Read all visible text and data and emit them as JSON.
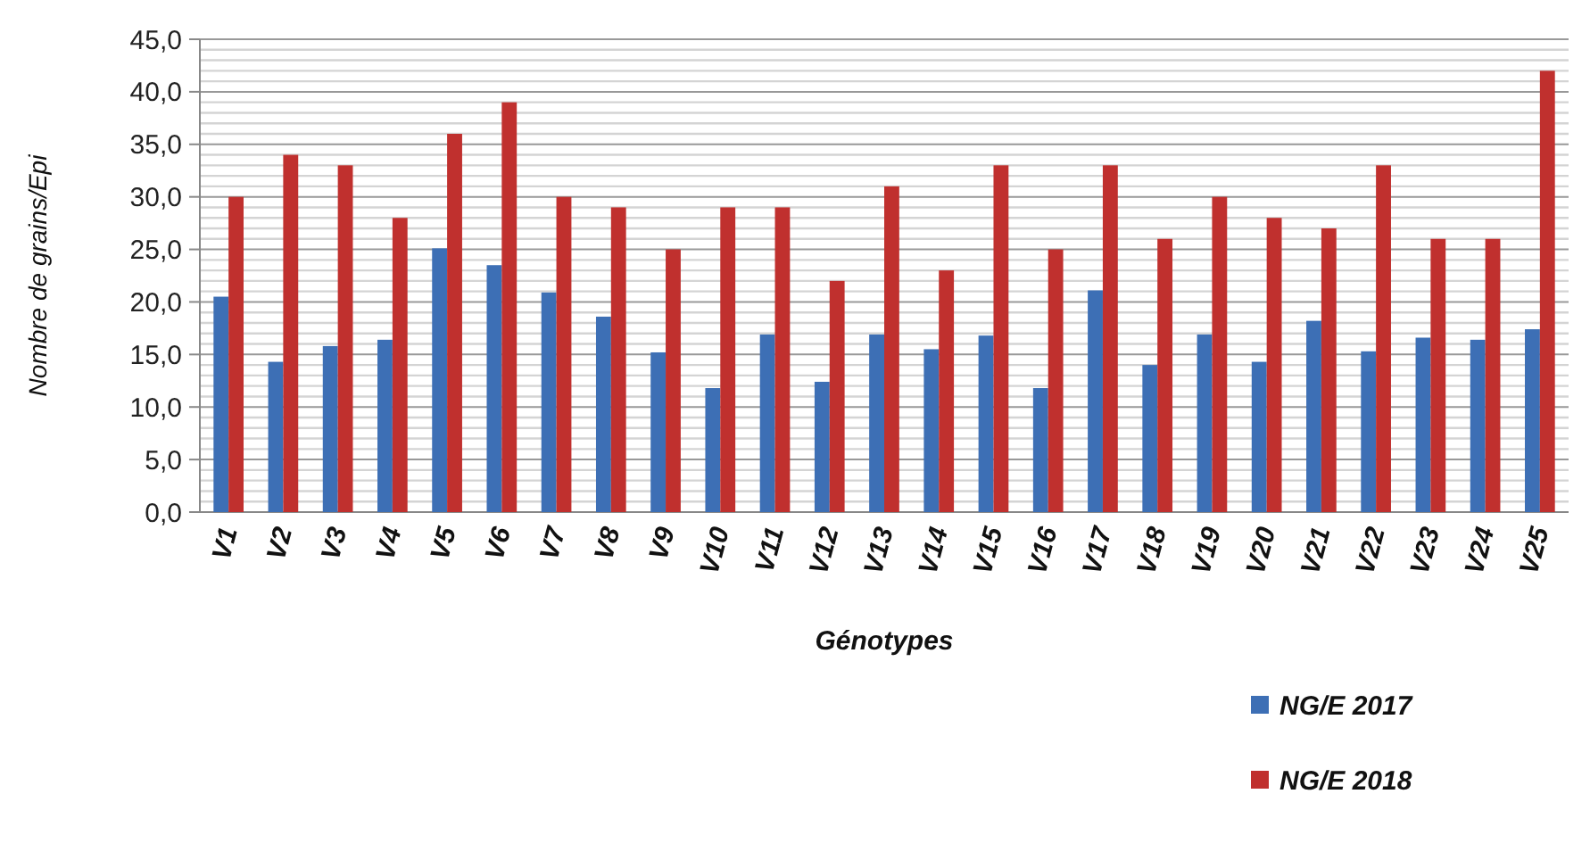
{
  "chart_data": {
    "type": "bar",
    "xlabel": "Génotypes",
    "ylabel": "Nombre de grains/Epi",
    "categories": [
      "V1",
      "V2",
      "V3",
      "V4",
      "V5",
      "V6",
      "V7",
      "V8",
      "V9",
      "V10",
      "V11",
      "V12",
      "V13",
      "V14",
      "V15",
      "V16",
      "V17",
      "V18",
      "V19",
      "V20",
      "V21",
      "V22",
      "V23",
      "V24",
      "V25"
    ],
    "series": [
      {
        "name": "NG/E 2017",
        "color": "#3d6fb5",
        "values": [
          20.5,
          14.3,
          15.8,
          16.4,
          25.1,
          23.5,
          20.9,
          18.6,
          15.2,
          11.8,
          16.9,
          12.4,
          16.9,
          15.5,
          16.8,
          11.8,
          21.1,
          14.0,
          16.9,
          14.3,
          18.2,
          15.3,
          16.6,
          16.4,
          17.4
        ]
      },
      {
        "name": "NG/E 2018",
        "color": "#c0302e",
        "values": [
          30,
          34,
          33,
          28,
          36,
          39,
          30,
          29,
          25,
          29,
          29,
          22,
          31,
          23,
          33,
          25,
          33,
          26,
          30,
          28,
          27,
          33,
          26,
          26,
          42
        ]
      }
    ],
    "ylim": [
      0,
      45
    ],
    "yticks": [
      {
        "value": 0,
        "label": "0,0"
      },
      {
        "value": 1,
        "label": null
      },
      {
        "value": 2,
        "label": null
      },
      {
        "value": 3,
        "label": null
      },
      {
        "value": 4,
        "label": null
      },
      {
        "value": 5,
        "label": "5,0"
      },
      {
        "value": 6,
        "label": null
      },
      {
        "value": 7,
        "label": null
      },
      {
        "value": 8,
        "label": null
      },
      {
        "value": 9,
        "label": null
      },
      {
        "value": 10,
        "label": "10,0"
      },
      {
        "value": 11,
        "label": null
      },
      {
        "value": 12,
        "label": null
      },
      {
        "value": 13,
        "label": null
      },
      {
        "value": 14,
        "label": null
      },
      {
        "value": 15,
        "label": "15,0"
      },
      {
        "value": 16,
        "label": null
      },
      {
        "value": 17,
        "label": null
      },
      {
        "value": 18,
        "label": null
      },
      {
        "value": 19,
        "label": null
      },
      {
        "value": 20,
        "label": "20,0"
      },
      {
        "value": 21,
        "label": null
      },
      {
        "value": 22,
        "label": null
      },
      {
        "value": 23,
        "label": null
      },
      {
        "value": 24,
        "label": null
      },
      {
        "value": 25,
        "label": "25,0"
      },
      {
        "value": 26,
        "label": null
      },
      {
        "value": 27,
        "label": null
      },
      {
        "value": 28,
        "label": null
      },
      {
        "value": 29,
        "label": null
      },
      {
        "value": 30,
        "label": "30,0"
      },
      {
        "value": 31,
        "label": null
      },
      {
        "value": 32,
        "label": null
      },
      {
        "value": 33,
        "label": null
      },
      {
        "value": 34,
        "label": null
      },
      {
        "value": 35,
        "label": "35,0"
      },
      {
        "value": 36,
        "label": null
      },
      {
        "value": 37,
        "label": null
      },
      {
        "value": 38,
        "label": null
      },
      {
        "value": 39,
        "label": null
      },
      {
        "value": 40,
        "label": "40,0"
      },
      {
        "value": 41,
        "label": null
      },
      {
        "value": 42,
        "label": null
      },
      {
        "value": 43,
        "label": null
      },
      {
        "value": 44,
        "label": null
      },
      {
        "value": 45,
        "label": "45,0"
      }
    ],
    "grid": "y",
    "legend": "bottom right"
  }
}
